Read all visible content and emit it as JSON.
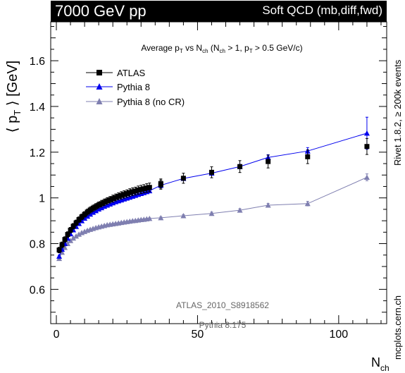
{
  "header": {
    "energy_label": "7000 GeV pp",
    "process_label": "Soft QCD (mb,diff,fwd)"
  },
  "side_labels": {
    "right_top": "Rivet 1.8.2, ≥ 200k events",
    "right_bottom": "mcplots.cern.ch"
  },
  "annotations": {
    "analysis_id": "ATLAS_2010_S8918562",
    "generator_version": "Pythia 8.175"
  },
  "colors": {
    "atlas": "#000000",
    "pythia8": "#0000ee",
    "pythia8_nocr": "#7f7fb0"
  },
  "chart_data": {
    "type": "scatter",
    "title": "Average pT vs Nch (Nch > 1, pT > 0.5 GeV/c)",
    "title_parts": {
      "a": "Average p",
      "a_sub": "T",
      "b": " vs N",
      "b_sub": "ch",
      "c": " (N",
      "c_sub": "ch",
      "d": " > 1, p",
      "d_sub": "T",
      "e": " > 0.5 GeV/c)"
    },
    "xlabel": "N",
    "xlabel_sub": "ch",
    "ylabel": "⟨ p",
    "ylabel_sub": "T",
    "ylabel_tail": " ⟩ [GeV]",
    "xlim": [
      -2,
      117
    ],
    "ylim": [
      0.45,
      1.77
    ],
    "xticks": [
      0,
      50,
      100
    ],
    "yticks": [
      0.6,
      0.8,
      1.0,
      1.2,
      1.4,
      1.6
    ],
    "ytick_labels": [
      "0.6",
      "0.8",
      "1",
      "1.2",
      "1.4",
      "1.6"
    ],
    "legend_position": "top-left",
    "series": [
      {
        "name": "ATLAS",
        "marker": "square",
        "x": [
          1,
          2,
          3,
          4,
          5,
          6,
          7,
          8,
          9,
          10,
          11,
          12,
          13,
          14,
          15,
          16,
          17,
          18,
          19,
          20,
          21,
          22,
          23,
          24,
          25,
          26,
          27,
          28,
          29,
          30,
          31,
          32,
          33,
          37,
          37,
          45,
          55,
          65,
          75,
          89,
          110
        ],
        "y": [
          0.772,
          0.795,
          0.818,
          0.84,
          0.859,
          0.876,
          0.891,
          0.905,
          0.917,
          0.928,
          0.938,
          0.947,
          0.955,
          0.962,
          0.969,
          0.975,
          0.981,
          0.987,
          0.992,
          0.997,
          1.002,
          1.007,
          1.011,
          1.015,
          1.019,
          1.023,
          1.027,
          1.03,
          1.034,
          1.037,
          1.04,
          1.043,
          1.046,
          1.063,
          1.058,
          1.086,
          1.112,
          1.137,
          1.159,
          1.18,
          1.225
        ],
        "yerr": [
          0.012,
          0.012,
          0.012,
          0.012,
          0.012,
          0.012,
          0.012,
          0.012,
          0.012,
          0.012,
          0.013,
          0.013,
          0.013,
          0.013,
          0.013,
          0.014,
          0.014,
          0.014,
          0.014,
          0.015,
          0.015,
          0.015,
          0.016,
          0.016,
          0.016,
          0.017,
          0.017,
          0.017,
          0.018,
          0.018,
          0.018,
          0.019,
          0.019,
          0.02,
          0.02,
          0.022,
          0.024,
          0.026,
          0.028,
          0.03,
          0.035
        ]
      },
      {
        "name": "Pythia 8",
        "marker": "triangle",
        "x": [
          1,
          2,
          3,
          4,
          5,
          6,
          7,
          8,
          9,
          10,
          11,
          12,
          13,
          14,
          15,
          16,
          17,
          18,
          19,
          20,
          21,
          22,
          23,
          24,
          25,
          26,
          27,
          28,
          29,
          30,
          31,
          32,
          33,
          37,
          45,
          55,
          65,
          75,
          89,
          110
        ],
        "y": [
          0.745,
          0.775,
          0.8,
          0.823,
          0.843,
          0.86,
          0.875,
          0.888,
          0.9,
          0.911,
          0.92,
          0.929,
          0.937,
          0.944,
          0.951,
          0.957,
          0.963,
          0.968,
          0.973,
          0.978,
          0.983,
          0.987,
          0.991,
          0.995,
          0.999,
          1.003,
          1.007,
          1.011,
          1.015,
          1.019,
          1.023,
          1.027,
          1.031,
          1.055,
          1.085,
          1.108,
          1.137,
          1.177,
          1.205,
          1.283
        ],
        "yerr": [
          0.004,
          0.004,
          0.004,
          0.004,
          0.004,
          0.004,
          0.004,
          0.004,
          0.004,
          0.004,
          0.004,
          0.004,
          0.004,
          0.004,
          0.004,
          0.004,
          0.004,
          0.004,
          0.004,
          0.004,
          0.004,
          0.004,
          0.004,
          0.004,
          0.004,
          0.004,
          0.004,
          0.004,
          0.004,
          0.004,
          0.004,
          0.004,
          0.004,
          0.005,
          0.006,
          0.008,
          0.01,
          0.012,
          0.015,
          0.07
        ]
      },
      {
        "name": "Pythia 8 (no CR)",
        "marker": "triangle",
        "x": [
          1,
          2,
          3,
          4,
          5,
          6,
          7,
          8,
          9,
          10,
          11,
          12,
          13,
          14,
          15,
          16,
          17,
          18,
          19,
          20,
          21,
          22,
          23,
          24,
          25,
          26,
          27,
          28,
          29,
          30,
          31,
          32,
          33,
          37,
          45,
          55,
          65,
          75,
          89,
          110
        ],
        "y": [
          0.735,
          0.762,
          0.783,
          0.8,
          0.813,
          0.824,
          0.833,
          0.841,
          0.848,
          0.853,
          0.858,
          0.862,
          0.866,
          0.87,
          0.873,
          0.876,
          0.879,
          0.882,
          0.884,
          0.886,
          0.888,
          0.89,
          0.892,
          0.894,
          0.896,
          0.898,
          0.9,
          0.901,
          0.903,
          0.905,
          0.906,
          0.908,
          0.91,
          0.913,
          0.922,
          0.932,
          0.946,
          0.968,
          0.975,
          1.09
        ],
        "yerr": [
          0.003,
          0.003,
          0.003,
          0.003,
          0.003,
          0.003,
          0.003,
          0.003,
          0.003,
          0.003,
          0.003,
          0.003,
          0.003,
          0.003,
          0.003,
          0.003,
          0.003,
          0.003,
          0.003,
          0.003,
          0.003,
          0.003,
          0.003,
          0.003,
          0.003,
          0.003,
          0.003,
          0.003,
          0.003,
          0.003,
          0.003,
          0.003,
          0.003,
          0.004,
          0.005,
          0.006,
          0.007,
          0.008,
          0.01,
          0.015
        ]
      }
    ]
  }
}
